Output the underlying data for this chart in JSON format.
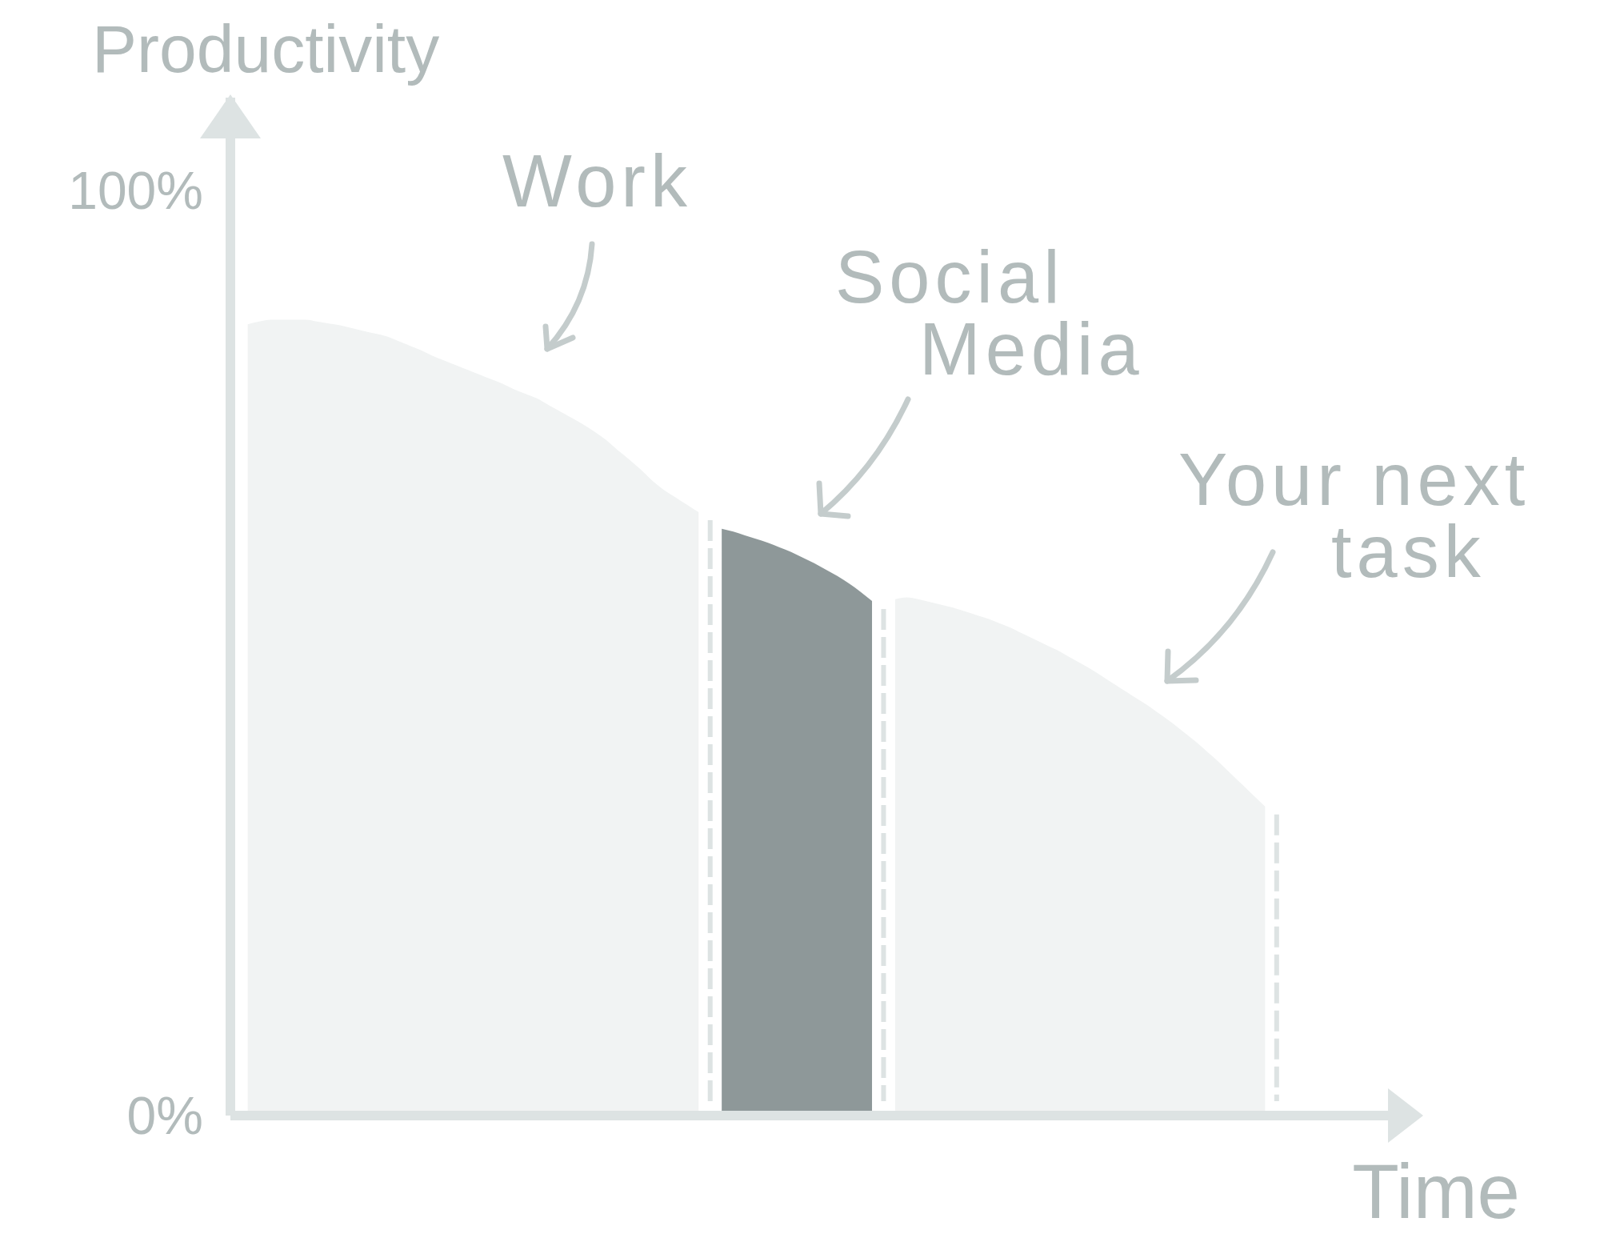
{
  "chart_data": {
    "type": "area",
    "ylabel": "Productivity",
    "xlabel": "Time",
    "categories": [
      null,
      null,
      null,
      null,
      null,
      null,
      null,
      null,
      null,
      null,
      null,
      null,
      null,
      null,
      null,
      null,
      null,
      null,
      null,
      null,
      null,
      null,
      null,
      null,
      null,
      null,
      null,
      null,
      null,
      null,
      null,
      null,
      null,
      null,
      null,
      null,
      null,
      null,
      null,
      null,
      null,
      null,
      null,
      null,
      null,
      null,
      null,
      null,
      null,
      null,
      null,
      null,
      null,
      null,
      null,
      null,
      null,
      null,
      null,
      null,
      null,
      null,
      null,
      null,
      null,
      null,
      null,
      null,
      null,
      null,
      null,
      null,
      null,
      null,
      null,
      null,
      null,
      null,
      null,
      null,
      null,
      null,
      null,
      null,
      null,
      null,
      null,
      null,
      null,
      null,
      null,
      null,
      null,
      null,
      null,
      null,
      null,
      null,
      null,
      null,
      null,
      null
    ],
    "ylim": [
      0,
      110
    ],
    "yticks": [
      {
        "value": 0,
        "label": "0%"
      },
      {
        "value": 100,
        "label": "100%"
      }
    ],
    "series": [
      {
        "name": "Work",
        "color": "#f1f3f3",
        "values": [
          null,
          85.5,
          85.8,
          86,
          86,
          86,
          86,
          85.8,
          85.6,
          85.4,
          85.1,
          84.8,
          84.5,
          84.2,
          83.7,
          83.2,
          82.7,
          82.1,
          81.6,
          81.1,
          80.6,
          80.1,
          79.6,
          79.1,
          78.5,
          78,
          77.5,
          76.8,
          76.1,
          75.4,
          74.7,
          73.9,
          73,
          71.9,
          70.9,
          69.8,
          68.6,
          67.6,
          66.8,
          66,
          65.2,
          null,
          null,
          null,
          null,
          null,
          null,
          null,
          null,
          null,
          null,
          null,
          null,
          null,
          null,
          null,
          null,
          null,
          null,
          null,
          null,
          null,
          null,
          null,
          null,
          null,
          null,
          null,
          null,
          null,
          null,
          null,
          null,
          null,
          null,
          null,
          null,
          null,
          null,
          null,
          null,
          null,
          null,
          null,
          null,
          null,
          null,
          null,
          null,
          null,
          null,
          null,
          null,
          null,
          null,
          null,
          null,
          null,
          null,
          null,
          null,
          null
        ]
      },
      {
        "name": "Social Media",
        "color": "#8e9899",
        "values": [
          null,
          null,
          null,
          null,
          null,
          null,
          null,
          null,
          null,
          null,
          null,
          null,
          null,
          null,
          null,
          null,
          null,
          null,
          null,
          null,
          null,
          null,
          null,
          null,
          null,
          null,
          null,
          null,
          null,
          null,
          null,
          null,
          null,
          null,
          null,
          null,
          null,
          null,
          null,
          null,
          null,
          null,
          63.4,
          63.1,
          62.7,
          62.3,
          61.9,
          61.4,
          60.9,
          60.3,
          59.7,
          59,
          58.3,
          57.5,
          56.6,
          55.6,
          null,
          null,
          null,
          null,
          null,
          null,
          null,
          null,
          null,
          null,
          null,
          null,
          null,
          null,
          null,
          null,
          null,
          null,
          null,
          null,
          null,
          null,
          null,
          null,
          null,
          null,
          null,
          null,
          null,
          null,
          null,
          null,
          null,
          null,
          null,
          null,
          null,
          null,
          null,
          null,
          null,
          null,
          null,
          null,
          null,
          null
        ]
      },
      {
        "name": "Your next task",
        "color": "#f1f3f3",
        "values": [
          null,
          null,
          null,
          null,
          null,
          null,
          null,
          null,
          null,
          null,
          null,
          null,
          null,
          null,
          null,
          null,
          null,
          null,
          null,
          null,
          null,
          null,
          null,
          null,
          null,
          null,
          null,
          null,
          null,
          null,
          null,
          null,
          null,
          null,
          null,
          null,
          null,
          null,
          null,
          null,
          null,
          null,
          null,
          null,
          null,
          null,
          null,
          null,
          null,
          null,
          null,
          null,
          null,
          null,
          null,
          null,
          null,
          55.8,
          56,
          55.8,
          55.5,
          55.2,
          54.9,
          54.5,
          54.1,
          53.7,
          53.2,
          52.7,
          52.1,
          51.5,
          50.9,
          50.3,
          49.6,
          48.9,
          48.2,
          47.4,
          46.6,
          45.8,
          45,
          44.2,
          43.3,
          42.4,
          41.4,
          40.4,
          39.3,
          38.2,
          37,
          35.8,
          34.6,
          33.4,
          null,
          null,
          null,
          null,
          null,
          null,
          null,
          null,
          null,
          null,
          null,
          null
        ]
      }
    ]
  }
}
